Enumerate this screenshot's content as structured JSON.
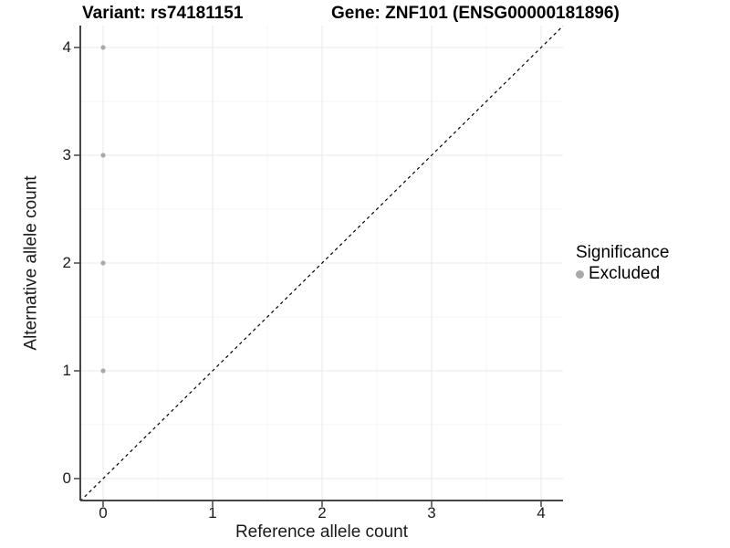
{
  "figure": {
    "title_left": "Variant: rs74181151",
    "title_right": "Gene: ZNF101 (ENSG00000181896)"
  },
  "chart_data": {
    "type": "scatter",
    "title": "Variant: rs74181151    Gene: ZNF101 (ENSG00000181896)",
    "xlabel": "Reference allele count",
    "ylabel": "Alternative allele count",
    "xlim": [
      -0.21,
      4.21
    ],
    "ylim": [
      -0.21,
      4.21
    ],
    "x_ticks": [
      0,
      1,
      2,
      3,
      4
    ],
    "y_ticks": [
      0,
      1,
      2,
      3,
      4
    ],
    "grid": "major and minor gridlines, light grey on white panel",
    "legend_position": "right",
    "series": [
      {
        "name": "Excluded",
        "color": "#aaaaaa",
        "points": [
          {
            "x": 0,
            "y": 1
          },
          {
            "x": 0,
            "y": 2
          },
          {
            "x": 0,
            "y": 3
          },
          {
            "x": 0,
            "y": 4
          }
        ]
      }
    ],
    "reference_line": {
      "type": "identity",
      "slope": 1,
      "intercept": 0,
      "style": "dashed",
      "color": "#000000"
    },
    "legend": {
      "title": "Significance",
      "entries": [
        {
          "label": "Excluded",
          "color": "#aaaaaa"
        }
      ]
    }
  },
  "colors": {
    "point": "#aaaaaa",
    "grid_major": "#e9e9e9",
    "grid_minor": "#f4f4f4",
    "axis_line": "#464646",
    "tick_text": "#1a1a1a",
    "reference_line": "#000000",
    "background": "#ffffff"
  }
}
